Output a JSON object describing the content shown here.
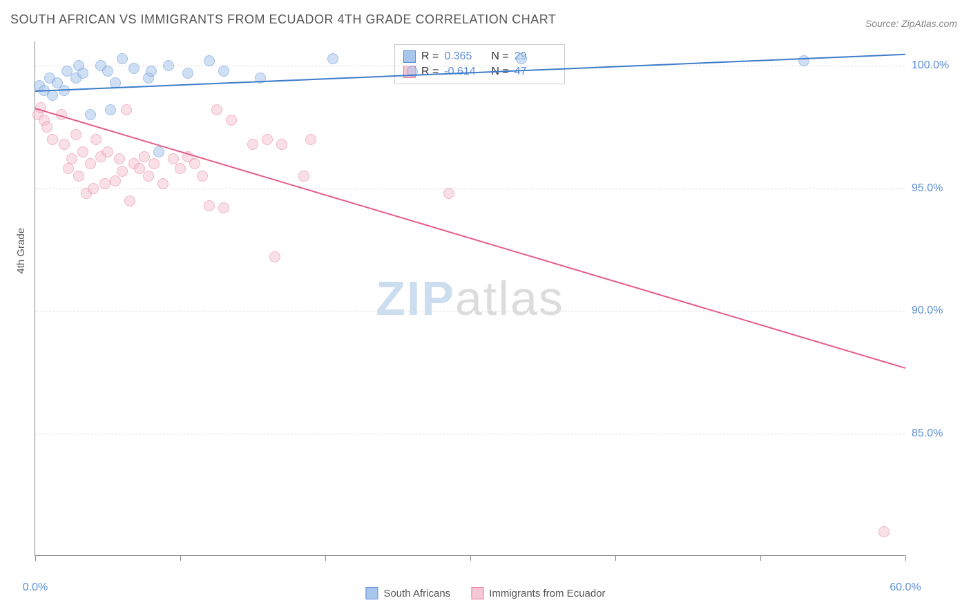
{
  "title": "SOUTH AFRICAN VS IMMIGRANTS FROM ECUADOR 4TH GRADE CORRELATION CHART",
  "source": "Source: ZipAtlas.com",
  "ylabel": "4th Grade",
  "watermark": {
    "part1": "ZIP",
    "part2": "atlas"
  },
  "chart": {
    "type": "scatter",
    "background_color": "#ffffff",
    "grid_color": "#dddddd",
    "xlim": [
      0,
      60
    ],
    "ylim": [
      80,
      101
    ],
    "xticks": [
      0,
      10,
      20,
      30,
      40,
      50,
      60
    ],
    "xtick_labels": [
      "0.0%",
      "",
      "",
      "",
      "",
      "",
      "60.0%"
    ],
    "yticks": [
      85,
      90,
      95,
      100
    ],
    "ytick_labels": [
      "85.0%",
      "90.0%",
      "95.0%",
      "100.0%"
    ],
    "label_fontsize": 16,
    "label_color": "#5b8dd6",
    "point_radius": 8,
    "point_opacity": 0.55,
    "series": [
      {
        "name": "South Africans",
        "fill_color": "#a8c5ec",
        "stroke_color": "#5b8dd6",
        "line_color": "#3d7cc9",
        "R": "0.365",
        "N": "29",
        "trend": {
          "x1": 0,
          "y1": 99.0,
          "x2": 60,
          "y2": 100.5
        },
        "points": [
          [
            0.3,
            99.2
          ],
          [
            0.6,
            99.0
          ],
          [
            1.0,
            99.5
          ],
          [
            1.2,
            98.8
          ],
          [
            1.5,
            99.3
          ],
          [
            2.0,
            99.0
          ],
          [
            2.2,
            99.8
          ],
          [
            2.8,
            99.5
          ],
          [
            3.0,
            100.0
          ],
          [
            3.3,
            99.7
          ],
          [
            3.8,
            98.0
          ],
          [
            4.5,
            100.0
          ],
          [
            5.0,
            99.8
          ],
          [
            5.5,
            99.3
          ],
          [
            5.2,
            98.2
          ],
          [
            6.0,
            100.3
          ],
          [
            6.8,
            99.9
          ],
          [
            7.8,
            99.5
          ],
          [
            8.0,
            99.8
          ],
          [
            8.5,
            96.5
          ],
          [
            9.2,
            100.0
          ],
          [
            10.5,
            99.7
          ],
          [
            12.0,
            100.2
          ],
          [
            13.0,
            99.8
          ],
          [
            15.5,
            99.5
          ],
          [
            20.5,
            100.3
          ],
          [
            26.0,
            99.8
          ],
          [
            33.5,
            100.3
          ],
          [
            53.0,
            100.2
          ]
        ]
      },
      {
        "name": "Immigrants from Ecuador",
        "fill_color": "#f5c6d3",
        "stroke_color": "#e77a9b",
        "line_color": "#e65c85",
        "R": "-0.614",
        "N": "47",
        "trend": {
          "x1": 0,
          "y1": 98.3,
          "x2": 60,
          "y2": 87.7
        },
        "points": [
          [
            0.2,
            98.0
          ],
          [
            0.4,
            98.3
          ],
          [
            0.6,
            97.8
          ],
          [
            0.8,
            97.5
          ],
          [
            1.2,
            97.0
          ],
          [
            1.8,
            98.0
          ],
          [
            2.0,
            96.8
          ],
          [
            2.3,
            95.8
          ],
          [
            2.5,
            96.2
          ],
          [
            2.8,
            97.2
          ],
          [
            3.0,
            95.5
          ],
          [
            3.3,
            96.5
          ],
          [
            3.5,
            94.8
          ],
          [
            3.8,
            96.0
          ],
          [
            4.0,
            95.0
          ],
          [
            4.2,
            97.0
          ],
          [
            4.5,
            96.3
          ],
          [
            4.8,
            95.2
          ],
          [
            5.0,
            96.5
          ],
          [
            5.5,
            95.3
          ],
          [
            5.8,
            96.2
          ],
          [
            6.0,
            95.7
          ],
          [
            6.5,
            94.5
          ],
          [
            6.8,
            96.0
          ],
          [
            6.3,
            98.2
          ],
          [
            7.2,
            95.8
          ],
          [
            7.5,
            96.3
          ],
          [
            7.8,
            95.5
          ],
          [
            8.2,
            96.0
          ],
          [
            8.8,
            95.2
          ],
          [
            9.5,
            96.2
          ],
          [
            10.0,
            95.8
          ],
          [
            10.5,
            96.3
          ],
          [
            11.0,
            96.0
          ],
          [
            11.5,
            95.5
          ],
          [
            12.5,
            98.2
          ],
          [
            12.0,
            94.3
          ],
          [
            13.0,
            94.2
          ],
          [
            13.5,
            97.8
          ],
          [
            15.0,
            96.8
          ],
          [
            16.0,
            97.0
          ],
          [
            16.5,
            92.2
          ],
          [
            17.0,
            96.8
          ],
          [
            18.5,
            95.5
          ],
          [
            19.0,
            97.0
          ],
          [
            28.5,
            94.8
          ],
          [
            58.5,
            81.0
          ]
        ]
      }
    ]
  },
  "legend_top": {
    "labels": {
      "R": "R =",
      "N": "N ="
    }
  },
  "legend_bottom": {
    "items": [
      {
        "label": "South Africans",
        "fill": "#a8c5ec",
        "stroke": "#5b8dd6"
      },
      {
        "label": "Immigrants from Ecuador",
        "fill": "#f5c6d3",
        "stroke": "#e77a9b"
      }
    ]
  }
}
